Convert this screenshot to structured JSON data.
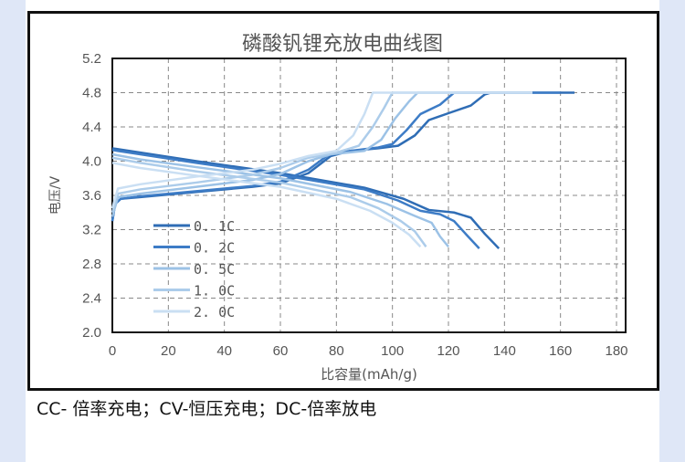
{
  "caption": "CC- 倍率充电；CV-恒压充电；DC-倍率放电",
  "chart_data": {
    "type": "line",
    "title": "磷酸钒锂充放电曲线图",
    "xlabel": "比容量(mAh/g)",
    "ylabel": "电压/V",
    "xlim": [
      0,
      180
    ],
    "ylim": [
      2.0,
      5.2
    ],
    "xticks": [
      0,
      20,
      40,
      60,
      80,
      100,
      120,
      140,
      160,
      180
    ],
    "yticks": [
      "2.0",
      "2.4",
      "2.8",
      "3.2",
      "3.6",
      "4.0",
      "4.4",
      "4.8",
      "5.2"
    ],
    "grid": true,
    "legend": "left",
    "series": [
      {
        "name": "0.1C",
        "color": "#2f6db5",
        "charge": [
          [
            0,
            3.3
          ],
          [
            1,
            3.5
          ],
          [
            3,
            3.56
          ],
          [
            10,
            3.58
          ],
          [
            30,
            3.64
          ],
          [
            50,
            3.7
          ],
          [
            60,
            3.74
          ],
          [
            70,
            3.86
          ],
          [
            78,
            4.06
          ],
          [
            85,
            4.12
          ],
          [
            95,
            4.15
          ],
          [
            102,
            4.18
          ],
          [
            108,
            4.3
          ],
          [
            113,
            4.48
          ],
          [
            120,
            4.56
          ],
          [
            128,
            4.65
          ],
          [
            133,
            4.78
          ],
          [
            135,
            4.8
          ],
          [
            165,
            4.8
          ]
        ],
        "discharge": [
          [
            0,
            4.15
          ],
          [
            10,
            4.1
          ],
          [
            30,
            4.0
          ],
          [
            60,
            3.86
          ],
          [
            90,
            3.69
          ],
          [
            104,
            3.56
          ],
          [
            113,
            3.43
          ],
          [
            122,
            3.4
          ],
          [
            128,
            3.34
          ],
          [
            133,
            3.15
          ],
          [
            138,
            2.98
          ]
        ]
      },
      {
        "name": "0.2C",
        "color": "#3d7cc6",
        "charge": [
          [
            0,
            3.3
          ],
          [
            1,
            3.5
          ],
          [
            3,
            3.56
          ],
          [
            10,
            3.59
          ],
          [
            30,
            3.65
          ],
          [
            50,
            3.71
          ],
          [
            60,
            3.76
          ],
          [
            70,
            3.9
          ],
          [
            77,
            4.07
          ],
          [
            85,
            4.12
          ],
          [
            95,
            4.16
          ],
          [
            100,
            4.2
          ],
          [
            105,
            4.36
          ],
          [
            110,
            4.55
          ],
          [
            117,
            4.66
          ],
          [
            122,
            4.8
          ],
          [
            160,
            4.8
          ]
        ],
        "discharge": [
          [
            0,
            4.13
          ],
          [
            10,
            4.08
          ],
          [
            30,
            3.98
          ],
          [
            60,
            3.84
          ],
          [
            90,
            3.67
          ],
          [
            102,
            3.54
          ],
          [
            110,
            3.42
          ],
          [
            117,
            3.38
          ],
          [
            122,
            3.3
          ],
          [
            127,
            3.12
          ],
          [
            131,
            2.98
          ]
        ]
      },
      {
        "name": "0.5C",
        "color": "#9cc2e6",
        "charge": [
          [
            0,
            3.35
          ],
          [
            2,
            3.58
          ],
          [
            10,
            3.62
          ],
          [
            30,
            3.7
          ],
          [
            50,
            3.78
          ],
          [
            60,
            3.85
          ],
          [
            70,
            4.0
          ],
          [
            78,
            4.08
          ],
          [
            90,
            4.12
          ],
          [
            96,
            4.25
          ],
          [
            101,
            4.5
          ],
          [
            106,
            4.7
          ],
          [
            109,
            4.8
          ],
          [
            150,
            4.8
          ]
        ],
        "discharge": [
          [
            0,
            4.08
          ],
          [
            10,
            4.02
          ],
          [
            30,
            3.93
          ],
          [
            60,
            3.8
          ],
          [
            85,
            3.64
          ],
          [
            98,
            3.5
          ],
          [
            108,
            3.36
          ],
          [
            114,
            3.28
          ],
          [
            117,
            3.12
          ],
          [
            120,
            3.0
          ]
        ]
      },
      {
        "name": "1.0C",
        "color": "#acccea",
        "charge": [
          [
            0,
            3.4
          ],
          [
            2,
            3.62
          ],
          [
            10,
            3.67
          ],
          [
            30,
            3.75
          ],
          [
            50,
            3.84
          ],
          [
            60,
            3.92
          ],
          [
            70,
            4.04
          ],
          [
            80,
            4.1
          ],
          [
            88,
            4.18
          ],
          [
            93,
            4.4
          ],
          [
            97,
            4.62
          ],
          [
            100,
            4.8
          ],
          [
            150,
            4.8
          ]
        ],
        "discharge": [
          [
            0,
            4.04
          ],
          [
            10,
            3.98
          ],
          [
            30,
            3.88
          ],
          [
            60,
            3.75
          ],
          [
            85,
            3.58
          ],
          [
            95,
            3.45
          ],
          [
            103,
            3.3
          ],
          [
            108,
            3.18
          ],
          [
            112,
            3.0
          ]
        ]
      },
      {
        "name": "2.0C",
        "color": "#cadff3",
        "charge": [
          [
            0,
            3.45
          ],
          [
            2,
            3.68
          ],
          [
            10,
            3.73
          ],
          [
            30,
            3.82
          ],
          [
            50,
            3.9
          ],
          [
            60,
            3.97
          ],
          [
            70,
            4.06
          ],
          [
            80,
            4.12
          ],
          [
            86,
            4.3
          ],
          [
            90,
            4.55
          ],
          [
            93,
            4.8
          ],
          [
            150,
            4.8
          ]
        ],
        "discharge": [
          [
            0,
            3.98
          ],
          [
            10,
            3.92
          ],
          [
            30,
            3.83
          ],
          [
            60,
            3.7
          ],
          [
            80,
            3.56
          ],
          [
            92,
            3.42
          ],
          [
            100,
            3.28
          ],
          [
            106,
            3.14
          ],
          [
            110,
            3.0
          ]
        ]
      }
    ]
  }
}
